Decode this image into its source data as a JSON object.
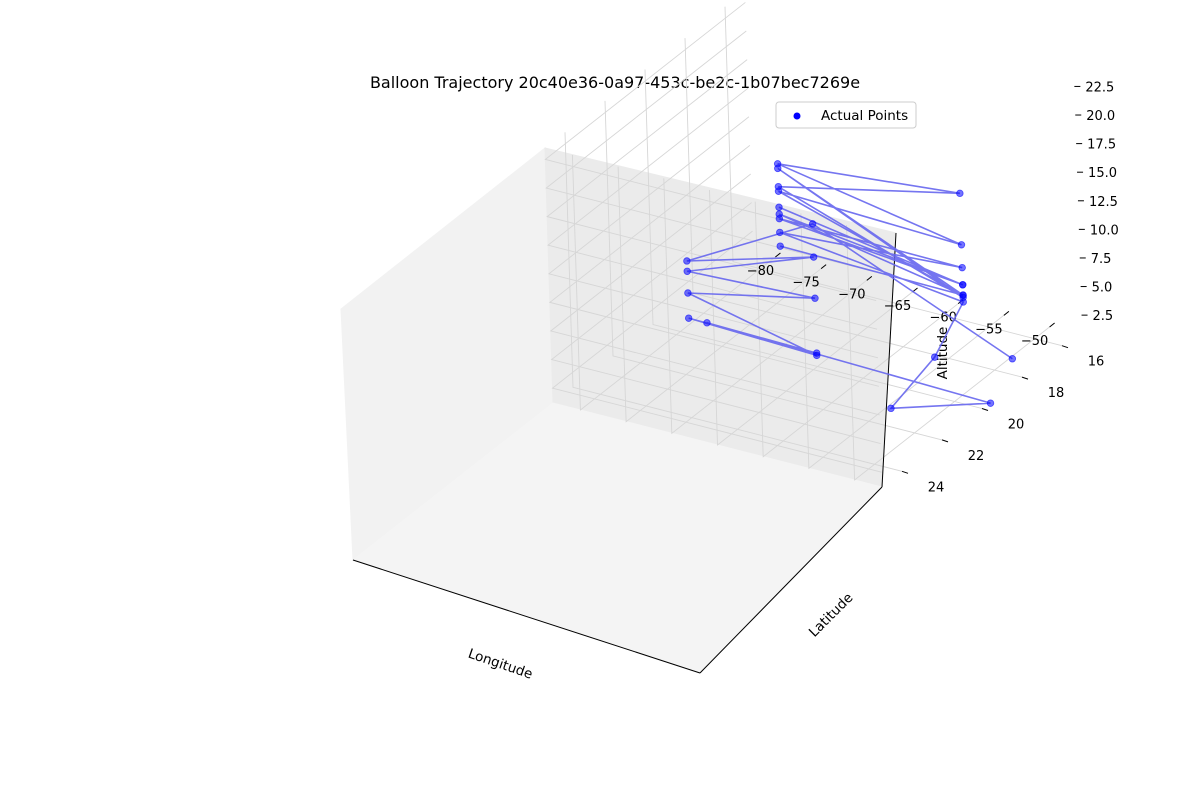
{
  "chart_data": {
    "type": "scatter",
    "projection": "3d",
    "title": "Balloon Trajectory 20c40e36-0a97-453c-be2c-1b07bec7269e",
    "xlabel": "Longitude",
    "ylabel": "Latitude",
    "zlabel": "Altitude",
    "x_ticks": [
      "−80",
      "−75",
      "−70",
      "−65",
      "−60",
      "−55",
      "−50"
    ],
    "y_ticks": [
      "16",
      "18",
      "20",
      "22",
      "24"
    ],
    "z_ticks": [
      "2.5",
      "5.0",
      "7.5",
      "10.0",
      "12.5",
      "15.0",
      "17.5",
      "20.0",
      "22.5"
    ],
    "xlim": [
      -83,
      -47
    ],
    "ylim": [
      15,
      25
    ],
    "zlim": [
      1.2,
      23.5
    ],
    "grid": true,
    "legend": {
      "entries": [
        "Actual Points"
      ],
      "placement": "top-right"
    },
    "series": [
      {
        "name": "Actual Points",
        "marker_color": "#0000ff",
        "line_color": "#6666ee",
        "points": [
          {
            "lon": -48.0,
            "lat": 18.0,
            "alt": 2.6
          },
          {
            "lon": -56.0,
            "lat": 24.0,
            "alt": 21.0
          },
          {
            "lon": -70.0,
            "lat": 24.0,
            "alt": 14.9
          },
          {
            "lon": -56.0,
            "lat": 24.0,
            "alt": 18.1
          },
          {
            "lon": -70.0,
            "lat": 24.0,
            "alt": 14.0
          },
          {
            "lon": -56.0,
            "lat": 24.0,
            "alt": 14.5
          },
          {
            "lon": -70.0,
            "lat": 24.0,
            "alt": 12.1
          },
          {
            "lon": -56.0,
            "lat": 24.0,
            "alt": 9.5
          },
          {
            "lon": -70.0,
            "lat": 24.0,
            "alt": 9.9
          },
          {
            "lon": -56.0,
            "lat": 24.0,
            "alt": 9.7
          },
          {
            "lon": -68.0,
            "lat": 24.0,
            "alt": 9.9
          },
          {
            "lon": -37.0,
            "lat": 24.0,
            "alt": 9.2
          },
          {
            "lon": -48.0,
            "lat": 24.0,
            "alt": 6.5
          },
          {
            "lon": -43.0,
            "lat": 24.0,
            "alt": 12.0
          },
          {
            "lon": -60.0,
            "lat": 15.0,
            "alt": 1.0
          },
          {
            "lon": -80.0,
            "lat": 15.0,
            "alt": 3.0
          },
          {
            "lon": -60.0,
            "lat": 15.0,
            "alt": 4.0
          },
          {
            "lon": -80.0,
            "lat": 15.0,
            "alt": 4.2
          },
          {
            "lon": -60.0,
            "lat": 15.0,
            "alt": 2.5
          },
          {
            "lon": -80.0,
            "lat": 15.0,
            "alt": 5.2
          },
          {
            "lon": -60.0,
            "lat": 15.0,
            "alt": 2.5
          },
          {
            "lon": -80.0,
            "lat": 15.0,
            "alt": 4.6
          },
          {
            "lon": -60.0,
            "lat": 15.0,
            "alt": 1.6
          },
          {
            "lon": -80.0,
            "lat": 15.0,
            "alt": 6.6
          },
          {
            "lon": -60.0,
            "lat": 15.0,
            "alt": 6.0
          },
          {
            "lon": -80.0,
            "lat": 15.0,
            "alt": 9.0
          },
          {
            "lon": -60.0,
            "lat": 15.0,
            "alt": 10.5
          },
          {
            "lon": -80.0,
            "lat": 15.0,
            "alt": 7.0
          },
          {
            "lon": -60.0,
            "lat": 15.0,
            "alt": 1.4
          },
          {
            "lon": -80.0,
            "lat": 15.0,
            "alt": 8.6
          },
          {
            "lon": -60.0,
            "lat": 15.0,
            "alt": 1.6
          },
          {
            "lon": -80.0,
            "lat": 15.0,
            "alt": 1.8
          }
        ]
      }
    ]
  }
}
